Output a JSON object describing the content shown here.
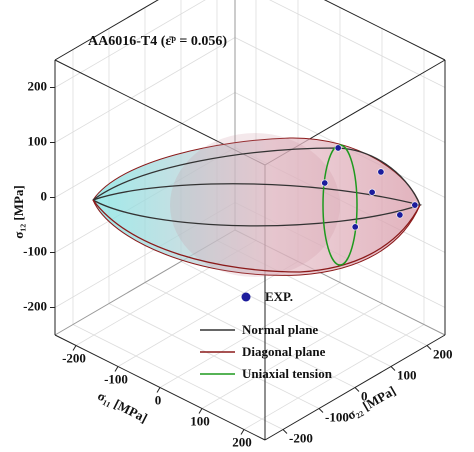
{
  "chart_data": {
    "type": "scatter3d",
    "title": "AA6016-T4 (ε̄ᵖ = 0.056)",
    "xlabel": "σ₁₁ [MPa]",
    "ylabel": "σ₂₂ [MPa]",
    "zlabel": "σ₁₂ [MPa]",
    "xlim": [
      -250,
      250
    ],
    "ylim": [
      -250,
      250
    ],
    "zlim": [
      -250,
      250
    ],
    "xticks": [
      -200,
      -100,
      0,
      100,
      200
    ],
    "yticks": [
      -200,
      -100,
      0,
      100,
      200
    ],
    "zticks": [
      -200,
      -100,
      0,
      100,
      200
    ],
    "grid": true,
    "series": [
      {
        "name": "EXP.",
        "color": "#1c1c9c",
        "x": [
          125,
          64,
          139,
          172,
          145,
          170,
          228
        ],
        "y": [
          99,
          133,
          130,
          163,
          170,
          218,
          192
        ],
        "z": [
          100,
          0,
          -50,
          50,
          0,
          -50,
          0
        ]
      },
      {
        "name": "Normal plane",
        "color": "#333333"
      },
      {
        "name": "Diagonal plane",
        "color": "#8b1a1a"
      },
      {
        "name": "Uniaxial tension",
        "color": "#1e9a1e"
      }
    ]
  }
}
